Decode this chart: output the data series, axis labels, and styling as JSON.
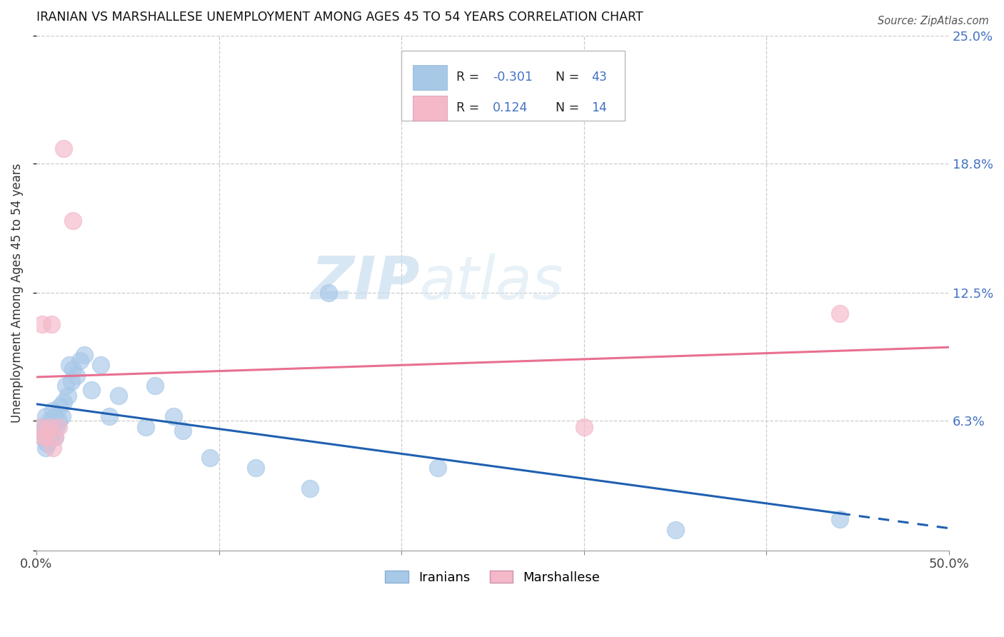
{
  "title": "IRANIAN VS MARSHALLESE UNEMPLOYMENT AMONG AGES 45 TO 54 YEARS CORRELATION CHART",
  "source": "Source: ZipAtlas.com",
  "ylabel": "Unemployment Among Ages 45 to 54 years",
  "xlim": [
    0.0,
    0.5
  ],
  "ylim": [
    0.0,
    0.25
  ],
  "watermark_zip": "ZIP",
  "watermark_atlas": "atlas",
  "iranian_color": "#a8c8e8",
  "marshallese_color": "#f4b8c8",
  "iranian_line_color": "#2060b0",
  "marshallese_line_color": "#e87090",
  "background_color": "#ffffff",
  "grid_color": "#cccccc",
  "right_axis_color": "#4472c4",
  "iranian_x": [
    0.002,
    0.003,
    0.004,
    0.005,
    0.005,
    0.006,
    0.006,
    0.007,
    0.007,
    0.008,
    0.008,
    0.009,
    0.009,
    0.01,
    0.01,
    0.011,
    0.012,
    0.013,
    0.014,
    0.015,
    0.016,
    0.017,
    0.018,
    0.019,
    0.02,
    0.022,
    0.024,
    0.026,
    0.03,
    0.035,
    0.04,
    0.045,
    0.06,
    0.065,
    0.075,
    0.08,
    0.095,
    0.12,
    0.15,
    0.16,
    0.22,
    0.35,
    0.44
  ],
  "iranian_y": [
    0.06,
    0.055,
    0.058,
    0.05,
    0.065,
    0.052,
    0.06,
    0.058,
    0.063,
    0.055,
    0.062,
    0.06,
    0.068,
    0.055,
    0.065,
    0.06,
    0.063,
    0.07,
    0.065,
    0.072,
    0.08,
    0.075,
    0.09,
    0.082,
    0.088,
    0.085,
    0.092,
    0.095,
    0.078,
    0.09,
    0.065,
    0.075,
    0.06,
    0.08,
    0.065,
    0.058,
    0.045,
    0.04,
    0.03,
    0.125,
    0.04,
    0.01,
    0.015
  ],
  "marshallese_x": [
    0.002,
    0.003,
    0.004,
    0.005,
    0.006,
    0.007,
    0.008,
    0.009,
    0.01,
    0.012,
    0.015,
    0.02,
    0.3,
    0.44
  ],
  "marshallese_y": [
    0.06,
    0.11,
    0.055,
    0.055,
    0.058,
    0.06,
    0.11,
    0.05,
    0.055,
    0.06,
    0.195,
    0.16,
    0.06,
    0.115
  ],
  "legend_R_iranian": "-0.301",
  "legend_N_iranian": "43",
  "legend_R_marshallese": "0.124",
  "legend_N_marshallese": "14"
}
